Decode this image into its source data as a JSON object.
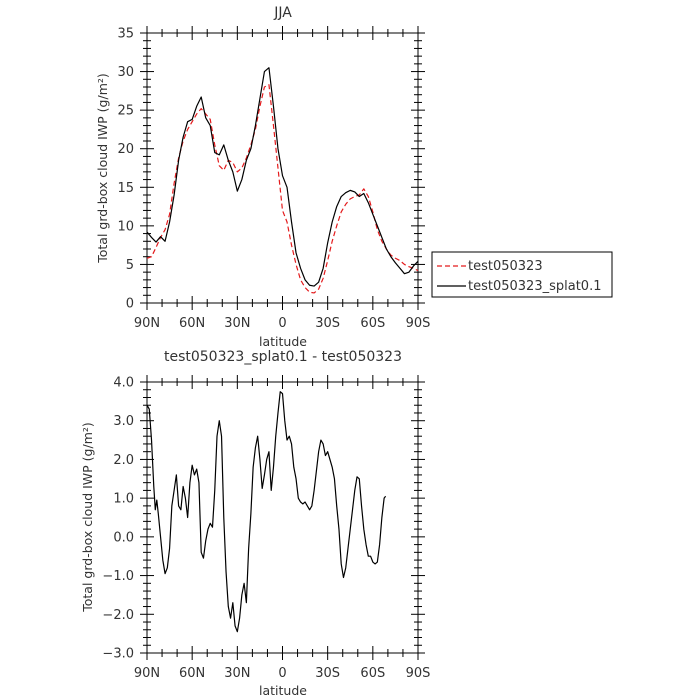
{
  "chart_data": [
    {
      "type": "line",
      "title": "JJA",
      "xlabel": "latitude",
      "ylabel": "Total grd-box cloud IWP (g/m²)",
      "xlim": [
        90,
        -90
      ],
      "ylim": [
        0,
        35
      ],
      "yticks": [
        0,
        5,
        10,
        15,
        20,
        25,
        30,
        35
      ],
      "ytick_labels": [
        "0",
        "5",
        "10",
        "15",
        "20",
        "25",
        "30",
        "35"
      ],
      "xticks": [
        90,
        60,
        30,
        0,
        -30,
        -60,
        -90
      ],
      "xtick_labels": [
        "90N",
        "60N",
        "30N",
        "0",
        "30S",
        "60S",
        "90S"
      ],
      "grid": false,
      "legend_position": "right-outside",
      "series": [
        {
          "name": "test050323",
          "color": "#e41a1c",
          "style": "dashed",
          "points": [
            [
              90,
              5.8
            ],
            [
              87,
              6.0
            ],
            [
              84,
              7.2
            ],
            [
              81,
              8.5
            ],
            [
              78,
              9.5
            ],
            [
              75,
              11.5
            ],
            [
              72,
              15.5
            ],
            [
              69,
              18.8
            ],
            [
              66,
              21.0
            ],
            [
              63,
              22.5
            ],
            [
              60,
              23.5
            ],
            [
              57,
              24.5
            ],
            [
              54,
              25.2
            ],
            [
              51,
              24.5
            ],
            [
              48,
              23.8
            ],
            [
              45,
              20.5
            ],
            [
              42,
              17.8
            ],
            [
              39,
              17.2
            ],
            [
              36,
              18.5
            ],
            [
              33,
              18.2
            ],
            [
              30,
              17.0
            ],
            [
              27,
              17.5
            ],
            [
              24,
              18.8
            ],
            [
              21,
              20.5
            ],
            [
              18,
              22.5
            ],
            [
              15,
              25.5
            ],
            [
              12,
              28.0
            ],
            [
              9,
              28.3
            ],
            [
              6,
              23.0
            ],
            [
              3,
              17.5
            ],
            [
              0,
              12.0
            ],
            [
              -3,
              10.5
            ],
            [
              -6,
              7.5
            ],
            [
              -9,
              5.0
            ],
            [
              -12,
              3.0
            ],
            [
              -15,
              2.0
            ],
            [
              -18,
              1.4
            ],
            [
              -21,
              1.3
            ],
            [
              -24,
              1.8
            ],
            [
              -27,
              3.2
            ],
            [
              -30,
              5.5
            ],
            [
              -33,
              8.0
            ],
            [
              -36,
              10.0
            ],
            [
              -39,
              11.8
            ],
            [
              -42,
              12.8
            ],
            [
              -45,
              13.5
            ],
            [
              -48,
              13.8
            ],
            [
              -51,
              14.0
            ],
            [
              -54,
              14.8
            ],
            [
              -57,
              13.8
            ],
            [
              -60,
              11.8
            ],
            [
              -63,
              9.5
            ],
            [
              -66,
              8.0
            ],
            [
              -69,
              7.0
            ],
            [
              -72,
              6.2
            ],
            [
              -75,
              5.8
            ],
            [
              -78,
              5.5
            ],
            [
              -81,
              5.0
            ],
            [
              -84,
              4.7
            ],
            [
              -87,
              4.5
            ],
            [
              -90,
              4.2
            ]
          ]
        },
        {
          "name": "test050323_splat0.1",
          "color": "#000000",
          "style": "solid",
          "points": [
            [
              90,
              9.2
            ],
            [
              87,
              8.5
            ],
            [
              84,
              7.9
            ],
            [
              81,
              8.6
            ],
            [
              78,
              8.0
            ],
            [
              75,
              10.5
            ],
            [
              72,
              14.0
            ],
            [
              69,
              18.5
            ],
            [
              66,
              21.5
            ],
            [
              63,
              23.5
            ],
            [
              60,
              23.8
            ],
            [
              57,
              25.5
            ],
            [
              54,
              26.7
            ],
            [
              51,
              24.0
            ],
            [
              48,
              23.0
            ],
            [
              45,
              19.5
            ],
            [
              42,
              19.2
            ],
            [
              39,
              20.5
            ],
            [
              36,
              18.5
            ],
            [
              33,
              17.0
            ],
            [
              30,
              14.5
            ],
            [
              27,
              16.0
            ],
            [
              24,
              18.5
            ],
            [
              21,
              20.0
            ],
            [
              18,
              23.0
            ],
            [
              15,
              26.5
            ],
            [
              12,
              30.0
            ],
            [
              9,
              30.5
            ],
            [
              6,
              25.5
            ],
            [
              3,
              20.0
            ],
            [
              0,
              16.5
            ],
            [
              -3,
              15.0
            ],
            [
              -6,
              10.5
            ],
            [
              -9,
              6.5
            ],
            [
              -12,
              4.5
            ],
            [
              -15,
              3.0
            ],
            [
              -18,
              2.3
            ],
            [
              -21,
              2.2
            ],
            [
              -24,
              2.7
            ],
            [
              -27,
              4.5
            ],
            [
              -30,
              7.8
            ],
            [
              -33,
              10.5
            ],
            [
              -36,
              12.5
            ],
            [
              -39,
              13.8
            ],
            [
              -42,
              14.3
            ],
            [
              -45,
              14.6
            ],
            [
              -48,
              14.4
            ],
            [
              -51,
              13.8
            ],
            [
              -54,
              14.2
            ],
            [
              -57,
              13.0
            ],
            [
              -60,
              11.5
            ],
            [
              -63,
              10.0
            ],
            [
              -66,
              8.5
            ],
            [
              -69,
              7.0
            ],
            [
              -72,
              6.0
            ],
            [
              -75,
              5.2
            ],
            [
              -78,
              4.5
            ],
            [
              -81,
              3.8
            ],
            [
              -84,
              4.0
            ],
            [
              -87,
              4.8
            ],
            [
              -90,
              5.4
            ]
          ]
        }
      ]
    },
    {
      "type": "line",
      "title": "test050323_splat0.1 - test050323",
      "xlabel": "latitude",
      "ylabel": "Total grd-box cloud IWP (g/m²)",
      "xlim": [
        90,
        -90
      ],
      "ylim": [
        -3.0,
        4.0
      ],
      "yticks": [
        -3.0,
        -2.0,
        -1.0,
        0.0,
        1.0,
        2.0,
        3.0,
        4.0
      ],
      "ytick_labels": [
        "−3.0",
        "−2.0",
        "−1.0",
        "0.0",
        "1.0",
        "2.0",
        "3.0",
        "4.0"
      ],
      "xticks": [
        90,
        60,
        30,
        0,
        -30,
        -60,
        -90
      ],
      "xtick_labels": [
        "90N",
        "60N",
        "30N",
        "0",
        "30S",
        "60S",
        "90S"
      ],
      "grid": false,
      "series": [
        {
          "color": "#000000",
          "style": "solid",
          "points": [
            [
              90,
              3.4
            ],
            [
              88.5,
              3.3
            ],
            [
              87,
              2.5
            ],
            [
              85.5,
              1.3
            ],
            [
              84.5,
              0.7
            ],
            [
              83.5,
              0.95
            ],
            [
              82.5,
              0.6
            ],
            [
              81,
              0.0
            ],
            [
              79.5,
              -0.6
            ],
            [
              78,
              -0.95
            ],
            [
              76.5,
              -0.8
            ],
            [
              75,
              -0.3
            ],
            [
              73.5,
              0.8
            ],
            [
              72,
              1.2
            ],
            [
              70.5,
              1.6
            ],
            [
              69,
              0.8
            ],
            [
              67.5,
              0.7
            ],
            [
              66,
              1.3
            ],
            [
              64.5,
              1.0
            ],
            [
              63,
              0.5
            ],
            [
              61.5,
              1.4
            ],
            [
              60,
              1.85
            ],
            [
              58.5,
              1.6
            ],
            [
              57,
              1.75
            ],
            [
              55.5,
              1.4
            ],
            [
              54,
              -0.4
            ],
            [
              52.5,
              -0.55
            ],
            [
              51,
              -0.1
            ],
            [
              49.5,
              0.2
            ],
            [
              48,
              0.35
            ],
            [
              46.5,
              0.25
            ],
            [
              45,
              1.2
            ],
            [
              43.5,
              2.6
            ],
            [
              42,
              3.0
            ],
            [
              40.5,
              2.6
            ],
            [
              39,
              0.5
            ],
            [
              37.5,
              -0.9
            ],
            [
              36,
              -1.8
            ],
            [
              34.5,
              -2.1
            ],
            [
              33,
              -1.7
            ],
            [
              31.5,
              -2.3
            ],
            [
              30,
              -2.45
            ],
            [
              28.5,
              -2.1
            ],
            [
              27,
              -1.5
            ],
            [
              25.5,
              -1.2
            ],
            [
              24,
              -1.7
            ],
            [
              22.5,
              -0.3
            ],
            [
              21,
              0.6
            ],
            [
              19.5,
              1.8
            ],
            [
              18,
              2.3
            ],
            [
              16.5,
              2.6
            ],
            [
              15,
              2.0
            ],
            [
              13.5,
              1.25
            ],
            [
              12,
              1.6
            ],
            [
              10.5,
              2.0
            ],
            [
              9,
              2.2
            ],
            [
              7.5,
              1.2
            ],
            [
              6,
              1.8
            ],
            [
              4.5,
              2.6
            ],
            [
              3,
              3.2
            ],
            [
              1.5,
              3.75
            ],
            [
              0,
              3.7
            ],
            [
              -1.5,
              3.0
            ],
            [
              -3,
              2.5
            ],
            [
              -4.5,
              2.6
            ],
            [
              -6,
              2.4
            ],
            [
              -7.5,
              1.8
            ],
            [
              -9,
              1.5
            ],
            [
              -10.5,
              1.0
            ],
            [
              -12,
              0.9
            ],
            [
              -13.5,
              0.85
            ],
            [
              -15,
              0.9
            ],
            [
              -16.5,
              0.8
            ],
            [
              -18,
              0.7
            ],
            [
              -19.5,
              0.8
            ],
            [
              -21,
              1.2
            ],
            [
              -22.5,
              1.7
            ],
            [
              -24,
              2.2
            ],
            [
              -25.5,
              2.5
            ],
            [
              -27,
              2.4
            ],
            [
              -28.5,
              2.1
            ],
            [
              -30,
              2.2
            ],
            [
              -31.5,
              2.0
            ],
            [
              -33,
              1.8
            ],
            [
              -34.5,
              1.5
            ],
            [
              -36,
              0.8
            ],
            [
              -37.5,
              0.2
            ],
            [
              -39,
              -0.7
            ],
            [
              -40.5,
              -1.05
            ],
            [
              -42,
              -0.8
            ],
            [
              -43.5,
              -0.3
            ],
            [
              -45,
              0.2
            ],
            [
              -46.5,
              0.7
            ],
            [
              -48,
              1.2
            ],
            [
              -49.5,
              1.55
            ],
            [
              -51,
              1.5
            ],
            [
              -52.5,
              0.8
            ],
            [
              -54,
              0.2
            ],
            [
              -55.5,
              -0.2
            ],
            [
              -57,
              -0.5
            ],
            [
              -58.5,
              -0.5
            ],
            [
              -60,
              -0.65
            ],
            [
              -61.5,
              -0.7
            ],
            [
              -63,
              -0.65
            ],
            [
              -64.5,
              -0.2
            ],
            [
              -66,
              0.5
            ],
            [
              -67.5,
              1.0
            ],
            [
              -68.5,
              1.05
            ]
          ]
        }
      ]
    }
  ]
}
